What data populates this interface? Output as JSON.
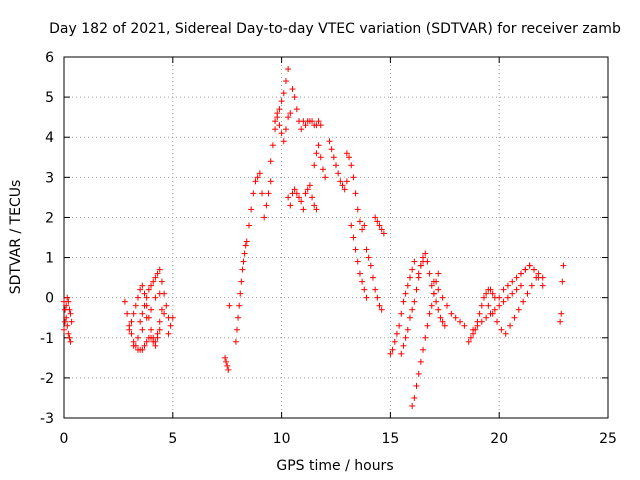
{
  "chart_data": {
    "type": "scatter",
    "title": "Day 182 of 2021, Sidereal Day-to-day VTEC variation (SDTVAR) for receiver zamb",
    "xlabel": "GPS time / hours",
    "ylabel": "SDTVAR / TECUs",
    "xlim": [
      0,
      25
    ],
    "ylim": [
      -3,
      6
    ],
    "xticks": [
      "0",
      "5",
      "10",
      "15",
      "20",
      "25"
    ],
    "yticks": [
      "-3",
      "-2",
      "-1",
      "0",
      "1",
      "2",
      "3",
      "4",
      "5",
      "6"
    ],
    "grid": true,
    "marker": "+",
    "color": "#ff0000",
    "x": [
      0.0,
      0.05,
      0.1,
      0.15,
      0.2,
      0.25,
      0.3,
      0.35,
      0.0,
      0.05,
      0.1,
      0.15,
      0.2,
      0.25,
      0.3,
      2.8,
      2.9,
      3.0,
      3.1,
      3.2,
      3.3,
      3.4,
      3.5,
      3.6,
      3.7,
      3.8,
      3.9,
      4.0,
      4.1,
      4.2,
      4.3,
      4.4,
      3.0,
      3.1,
      3.2,
      3.3,
      3.4,
      3.5,
      3.6,
      3.7,
      3.8,
      3.9,
      4.0,
      4.1,
      4.2,
      4.3,
      4.4,
      4.5,
      3.5,
      3.6,
      3.7,
      3.8,
      3.9,
      4.0,
      4.1,
      4.2,
      4.3,
      4.4,
      4.5,
      4.6,
      4.7,
      4.8,
      4.9,
      5.0,
      3.2,
      3.4,
      3.6,
      3.8,
      4.0,
      4.2,
      4.4,
      4.6,
      4.8,
      7.4,
      7.45,
      7.5,
      7.55,
      7.6,
      7.9,
      7.95,
      8.0,
      8.05,
      8.1,
      8.15,
      8.2,
      8.25,
      8.3,
      8.35,
      8.4,
      8.5,
      8.6,
      8.7,
      8.8,
      8.9,
      9.0,
      9.1,
      9.2,
      9.3,
      9.4,
      9.5,
      9.5,
      9.6,
      9.7,
      9.8,
      9.9,
      10.0,
      10.1,
      10.2,
      10.3,
      9.7,
      9.8,
      9.9,
      10.0,
      10.1,
      10.2,
      10.3,
      10.4,
      10.3,
      10.4,
      10.5,
      10.6,
      10.7,
      10.8,
      10.9,
      11.0,
      11.1,
      11.2,
      11.3,
      11.4,
      11.5,
      11.6,
      10.5,
      10.6,
      10.7,
      10.8,
      10.9,
      11.0,
      11.1,
      11.2,
      11.3,
      11.4,
      11.5,
      11.6,
      11.7,
      11.8,
      11.5,
      11.6,
      11.7,
      11.8,
      11.9,
      12.0,
      12.2,
      12.3,
      12.4,
      12.5,
      12.6,
      12.7,
      12.8,
      12.9,
      13.0,
      13.0,
      13.1,
      13.2,
      13.3,
      13.4,
      13.5,
      13.6,
      13.7,
      13.8,
      13.2,
      13.3,
      13.4,
      13.5,
      13.6,
      13.7,
      13.8,
      13.9,
      13.9,
      14.0,
      14.1,
      14.2,
      14.3,
      14.4,
      14.5,
      14.6,
      14.3,
      14.4,
      14.5,
      14.6,
      14.7,
      15.0,
      15.1,
      15.2,
      15.3,
      15.4,
      15.5,
      15.6,
      15.7,
      15.8,
      15.9,
      16.0,
      16.1,
      15.5,
      15.6,
      15.7,
      15.8,
      15.9,
      16.0,
      16.1,
      16.2,
      16.3,
      16.4,
      16.5,
      16.0,
      16.1,
      16.2,
      16.3,
      16.4,
      16.5,
      16.6,
      16.7,
      16.8,
      16.9,
      17.0,
      17.1,
      17.2,
      16.3,
      16.4,
      16.5,
      16.6,
      16.7,
      16.8,
      16.9,
      17.0,
      17.1,
      17.2,
      17.3,
      17.4,
      17.5,
      17.0,
      17.2,
      17.4,
      17.6,
      17.8,
      18.0,
      18.2,
      18.4,
      18.6,
      18.7,
      18.8,
      18.9,
      19.0,
      19.1,
      19.2,
      19.3,
      19.4,
      19.5,
      19.6,
      19.7,
      19.8,
      18.8,
      19.0,
      19.2,
      19.4,
      19.6,
      19.8,
      20.0,
      20.2,
      20.4,
      20.6,
      20.8,
      21.0,
      19.5,
      19.7,
      19.9,
      20.1,
      20.3,
      20.5,
      20.7,
      20.9,
      21.1,
      21.3,
      21.5,
      21.7,
      20.0,
      20.2,
      20.4,
      20.6,
      20.8,
      21.0,
      21.2,
      21.4,
      21.6,
      21.8,
      22.0,
      21.0,
      21.2,
      21.4,
      21.6,
      21.8,
      22.0,
      22.8,
      22.85,
      22.9,
      22.95
    ],
    "y": [
      -0.1,
      -0.3,
      -0.5,
      -0.7,
      -0.9,
      -1.0,
      -1.1,
      -0.6,
      -0.8,
      -0.6,
      -0.2,
      0.0,
      -0.1,
      -0.3,
      -0.4,
      -0.1,
      -0.4,
      -0.7,
      -0.9,
      -1.1,
      -1.2,
      -1.3,
      -1.3,
      -1.3,
      -1.2,
      -1.1,
      -1.0,
      -1.0,
      -1.1,
      -1.2,
      -1.0,
      -0.8,
      -0.8,
      -0.6,
      -0.4,
      -0.2,
      0.0,
      0.2,
      0.3,
      0.1,
      -0.2,
      -0.5,
      -0.8,
      -1.0,
      -1.1,
      -0.9,
      -0.6,
      -0.3,
      -0.6,
      -0.4,
      -0.2,
      0.0,
      0.2,
      0.3,
      0.4,
      0.5,
      0.6,
      0.7,
      0.4,
      0.1,
      -0.2,
      -0.5,
      -0.7,
      -0.5,
      -1.2,
      -1.0,
      -0.8,
      -0.5,
      -0.3,
      0.0,
      0.1,
      -0.4,
      -0.9,
      -1.5,
      -1.6,
      -1.7,
      -1.8,
      -0.2,
      -1.1,
      -0.8,
      -0.5,
      -0.2,
      0.1,
      0.4,
      0.7,
      0.9,
      1.1,
      1.3,
      1.4,
      1.8,
      2.2,
      2.6,
      2.9,
      3.0,
      3.1,
      2.6,
      2.0,
      2.3,
      2.6,
      2.9,
      3.4,
      3.8,
      4.2,
      4.5,
      4.7,
      4.9,
      5.1,
      5.4,
      5.7,
      4.4,
      4.6,
      4.3,
      4.1,
      3.9,
      4.2,
      4.5,
      4.6,
      2.5,
      2.3,
      2.6,
      2.7,
      2.6,
      2.5,
      2.4,
      2.2,
      2.6,
      2.7,
      2.8,
      2.5,
      2.3,
      2.2,
      5.2,
      5.0,
      4.7,
      4.4,
      4.2,
      4.4,
      4.3,
      4.4,
      4.4,
      4.4,
      4.3,
      4.3,
      4.4,
      4.3,
      3.3,
      3.6,
      3.8,
      3.5,
      3.2,
      3.0,
      3.9,
      3.7,
      3.5,
      3.3,
      3.1,
      2.9,
      2.8,
      2.7,
      2.9,
      3.6,
      3.5,
      3.3,
      3.0,
      2.6,
      2.2,
      1.9,
      1.7,
      1.8,
      1.8,
      1.5,
      1.2,
      0.9,
      0.6,
      0.4,
      0.2,
      0.0,
      1.2,
      1.0,
      0.8,
      0.5,
      0.2,
      0.0,
      -0.2,
      -0.3,
      2.0,
      1.9,
      1.8,
      1.7,
      1.6,
      -1.4,
      -1.3,
      -1.1,
      -0.9,
      -0.7,
      -0.4,
      -0.1,
      0.1,
      0.3,
      0.5,
      0.7,
      0.9,
      -1.4,
      -1.2,
      -1.0,
      -0.8,
      -0.5,
      -0.3,
      -0.1,
      0.2,
      0.5,
      0.8,
      0.9,
      -2.7,
      -2.5,
      -2.2,
      -1.9,
      -1.6,
      -1.3,
      -1.0,
      -0.7,
      -0.4,
      -0.2,
      0.1,
      0.4,
      0.6,
      0.6,
      0.8,
      1.0,
      1.1,
      0.9,
      0.6,
      0.3,
      0.1,
      -0.1,
      -0.3,
      -0.5,
      -0.6,
      -0.7,
      0.4,
      0.2,
      0.0,
      -0.2,
      -0.4,
      -0.5,
      -0.6,
      -0.7,
      -1.1,
      -1.0,
      -0.9,
      -0.8,
      -0.6,
      -0.4,
      -0.2,
      0.0,
      0.1,
      0.2,
      0.2,
      0.1,
      0.0,
      -0.8,
      -0.7,
      -0.6,
      -0.5,
      -0.4,
      -0.3,
      -0.2,
      -0.1,
      0.0,
      0.1,
      0.2,
      0.3,
      -0.2,
      -0.4,
      -0.6,
      -0.8,
      -0.9,
      -0.7,
      -0.5,
      -0.3,
      -0.1,
      0.1,
      0.3,
      0.5,
      0.0,
      0.2,
      0.3,
      0.4,
      0.5,
      0.6,
      0.7,
      0.8,
      0.7,
      0.5,
      0.3,
      0.6,
      0.7,
      0.8,
      0.7,
      0.6,
      0.5,
      -0.6,
      -0.4,
      0.4,
      0.8
    ]
  }
}
